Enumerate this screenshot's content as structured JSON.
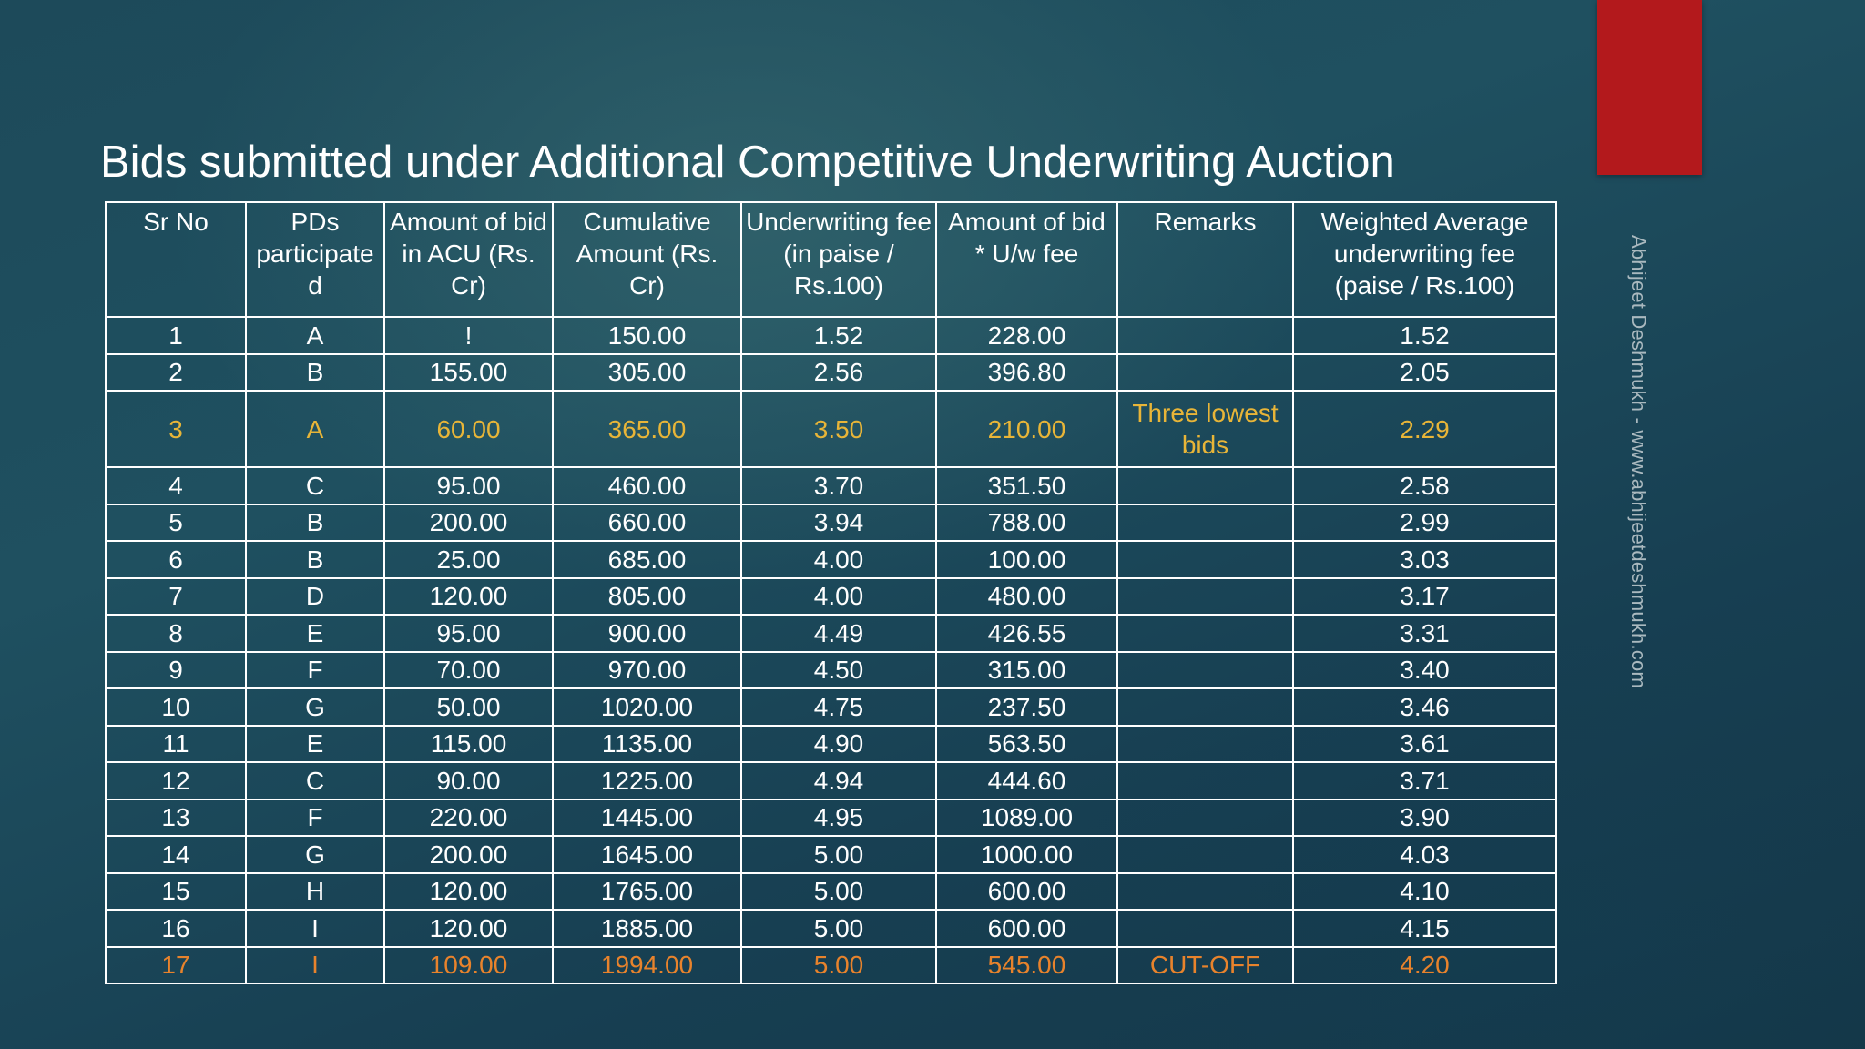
{
  "title": "Bids submitted under Additional Competitive Underwriting Auction",
  "watermark": "Abhijeet Deshmukh - www.abhijeetdeshmukh.com",
  "colors": {
    "background": "#1e4b5b",
    "accent_bar": "#b3191c",
    "highlight_yellow": "#e8b538",
    "highlight_orange": "#e8832c"
  },
  "table": {
    "headers": [
      "Sr No",
      "PDs participate d",
      "Amount of bid in ACU (Rs. Cr)",
      "Cumulative Amount (Rs. Cr)",
      "Underwriting fee (in paise / Rs.100)",
      "Amount of bid * U/w fee",
      "Remarks",
      "Weighted Average underwriting fee (paise / Rs.100)"
    ],
    "rows": [
      [
        "1",
        "A",
        "!",
        "150.00",
        "1.52",
        "228.00",
        "",
        "1.52"
      ],
      [
        "2",
        "B",
        "155.00",
        "305.00",
        "2.56",
        "396.80",
        "",
        "2.05"
      ],
      [
        "3",
        "A",
        "60.00",
        "365.00",
        "3.50",
        "210.00",
        "Three lowest bids",
        "2.29"
      ],
      [
        "4",
        "C",
        "95.00",
        "460.00",
        "3.70",
        "351.50",
        "",
        "2.58"
      ],
      [
        "5",
        "B",
        "200.00",
        "660.00",
        "3.94",
        "788.00",
        "",
        "2.99"
      ],
      [
        "6",
        "B",
        "25.00",
        "685.00",
        "4.00",
        "100.00",
        "",
        "3.03"
      ],
      [
        "7",
        "D",
        "120.00",
        "805.00",
        "4.00",
        "480.00",
        "",
        "3.17"
      ],
      [
        "8",
        "E",
        "95.00",
        "900.00",
        "4.49",
        "426.55",
        "",
        "3.31"
      ],
      [
        "9",
        "F",
        "70.00",
        "970.00",
        "4.50",
        "315.00",
        "",
        "3.40"
      ],
      [
        "10",
        "G",
        "50.00",
        "1020.00",
        "4.75",
        "237.50",
        "",
        "3.46"
      ],
      [
        "11",
        "E",
        "115.00",
        "1135.00",
        "4.90",
        "563.50",
        "",
        "3.61"
      ],
      [
        "12",
        "C",
        "90.00",
        "1225.00",
        "4.94",
        "444.60",
        "",
        "3.71"
      ],
      [
        "13",
        "F",
        "220.00",
        "1445.00",
        "4.95",
        "1089.00",
        "",
        "3.90"
      ],
      [
        "14",
        "G",
        "200.00",
        "1645.00",
        "5.00",
        "1000.00",
        "",
        "4.03"
      ],
      [
        "15",
        "H",
        "120.00",
        "1765.00",
        "5.00",
        "600.00",
        "",
        "4.10"
      ],
      [
        "16",
        "I",
        "120.00",
        "1885.00",
        "5.00",
        "600.00",
        "",
        "4.15"
      ],
      [
        "17",
        "I",
        "109.00",
        "1994.00",
        "5.00",
        "545.00",
        "CUT-OFF",
        "4.20"
      ]
    ]
  }
}
